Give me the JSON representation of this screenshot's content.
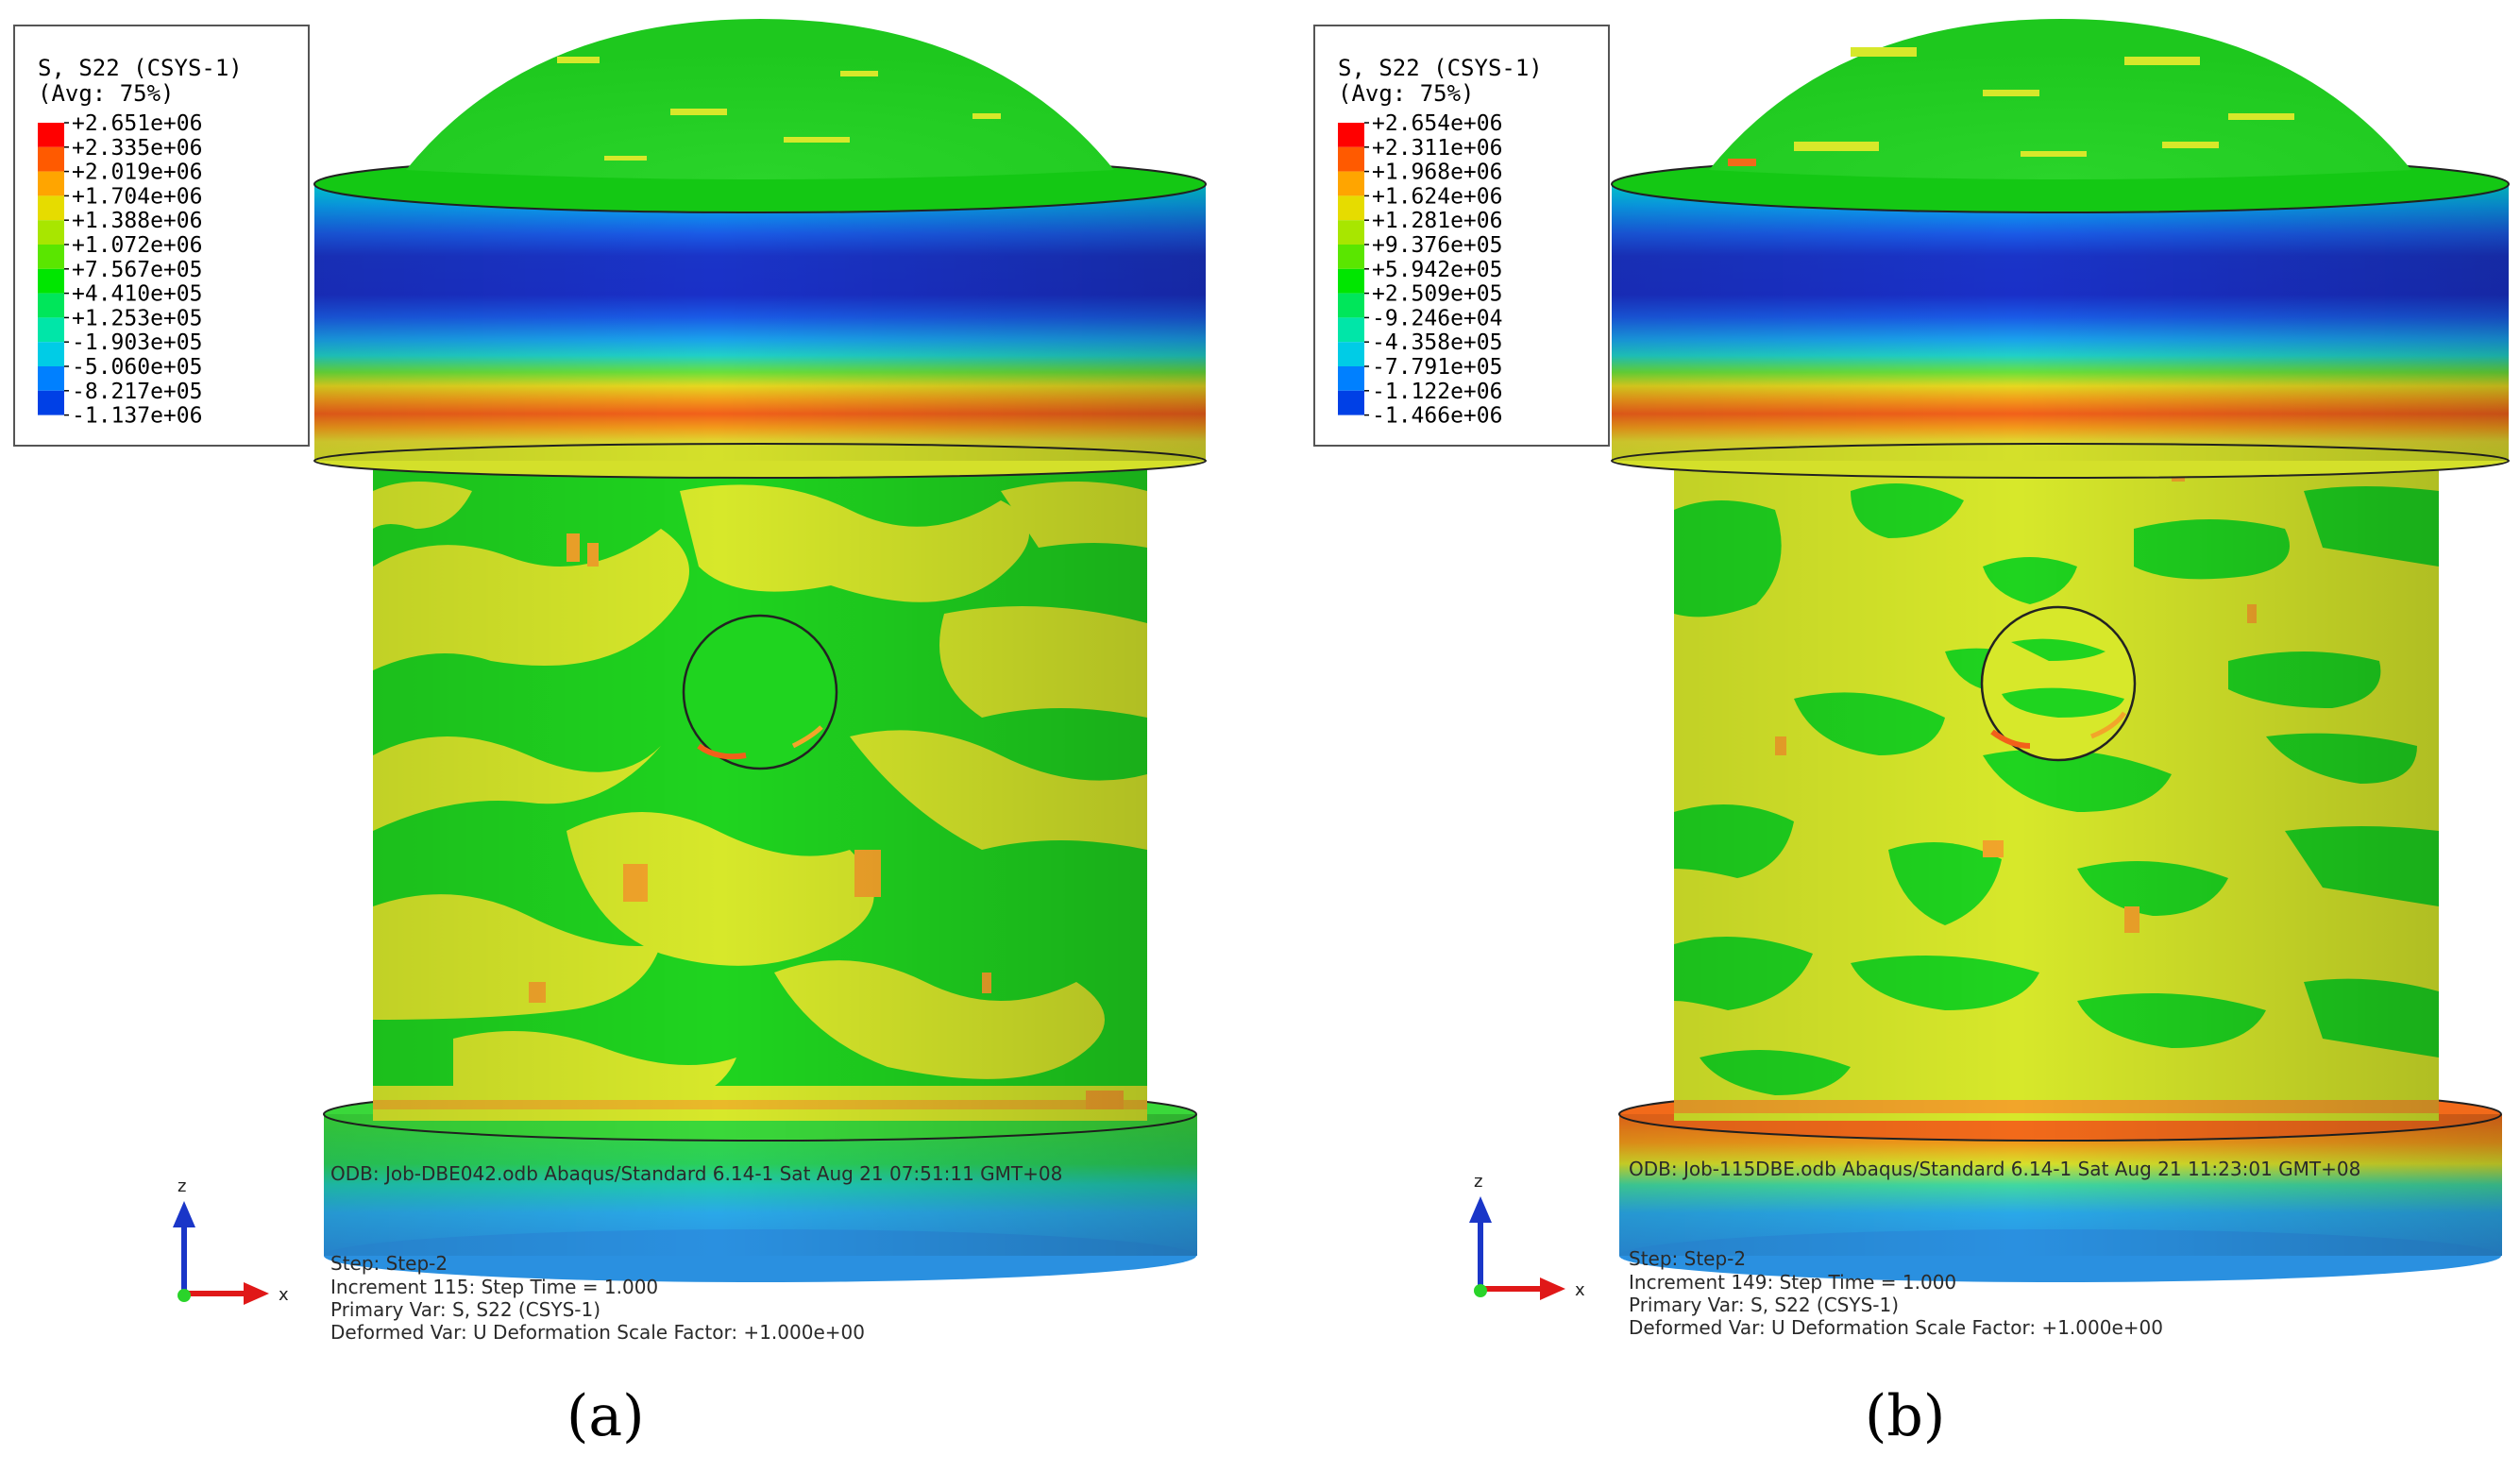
{
  "panels": [
    {
      "id": "a",
      "caption": "(a)",
      "legend": {
        "title": "S, S22 (CSYS-1)",
        "subtitle": "(Avg: 75%)",
        "values": [
          "+2.651e+06",
          "+2.335e+06",
          "+2.019e+06",
          "+1.704e+06",
          "+1.388e+06",
          "+1.072e+06",
          "+7.567e+05",
          "+4.410e+05",
          "+1.253e+05",
          "-1.903e+05",
          "-5.060e+05",
          "-8.217e+05",
          "-1.137e+06"
        ]
      },
      "odb_line": "ODB: Job-DBE042.odb    Abaqus/Standard 6.14-1    Sat Aug 21 07:51:11 GMT+08",
      "step_line": "Step: Step-2",
      "increment_line": "Increment    115: Step Time =    1.000",
      "primary_line": "Primary Var: S, S22 (CSYS-1)",
      "deformed_line": "Deformed Var: U   Deformation Scale Factor: +1.000e+00",
      "triad": {
        "z": "z",
        "x": "x"
      }
    },
    {
      "id": "b",
      "caption": "(b)",
      "legend": {
        "title": "S, S22 (CSYS-1)",
        "subtitle": "(Avg: 75%)",
        "values": [
          "+2.654e+06",
          "+2.311e+06",
          "+1.968e+06",
          "+1.624e+06",
          "+1.281e+06",
          "+9.376e+05",
          "+5.942e+05",
          "+2.509e+05",
          "-9.246e+04",
          "-4.358e+05",
          "-7.791e+05",
          "-1.122e+06",
          "-1.466e+06"
        ]
      },
      "odb_line": "ODB: Job-115DBE.odb    Abaqus/Standard 6.14-1    Sat Aug 21 11:23:01 GMT+08",
      "step_line": "Step: Step-2",
      "increment_line": "Increment    149: Step Time =    1.000",
      "primary_line": "Primary Var: S, S22 (CSYS-1)",
      "deformed_line": "Deformed Var: U   Deformation Scale Factor: +1.000e+00",
      "triad": {
        "z": "z",
        "x": "x"
      }
    }
  ],
  "colors": {
    "scale": [
      "#ff0000",
      "#ff5a00",
      "#ffa500",
      "#e6dc00",
      "#a8e600",
      "#5ae600",
      "#00e600",
      "#00e65a",
      "#00e6a8",
      "#00cce6",
      "#0080ff",
      "#0040e6",
      "#0000cc"
    ],
    "cylinder_green": "#1fd41f",
    "cylinder_yellow": "#d7e82a",
    "hotspot_orange": "#f2a52a",
    "band_orange": "#f26a1a",
    "band_blue": "#1530c8",
    "base_blue": "#3aa0e6",
    "triad_blue": "#1a36c8",
    "triad_red": "#e01818"
  }
}
